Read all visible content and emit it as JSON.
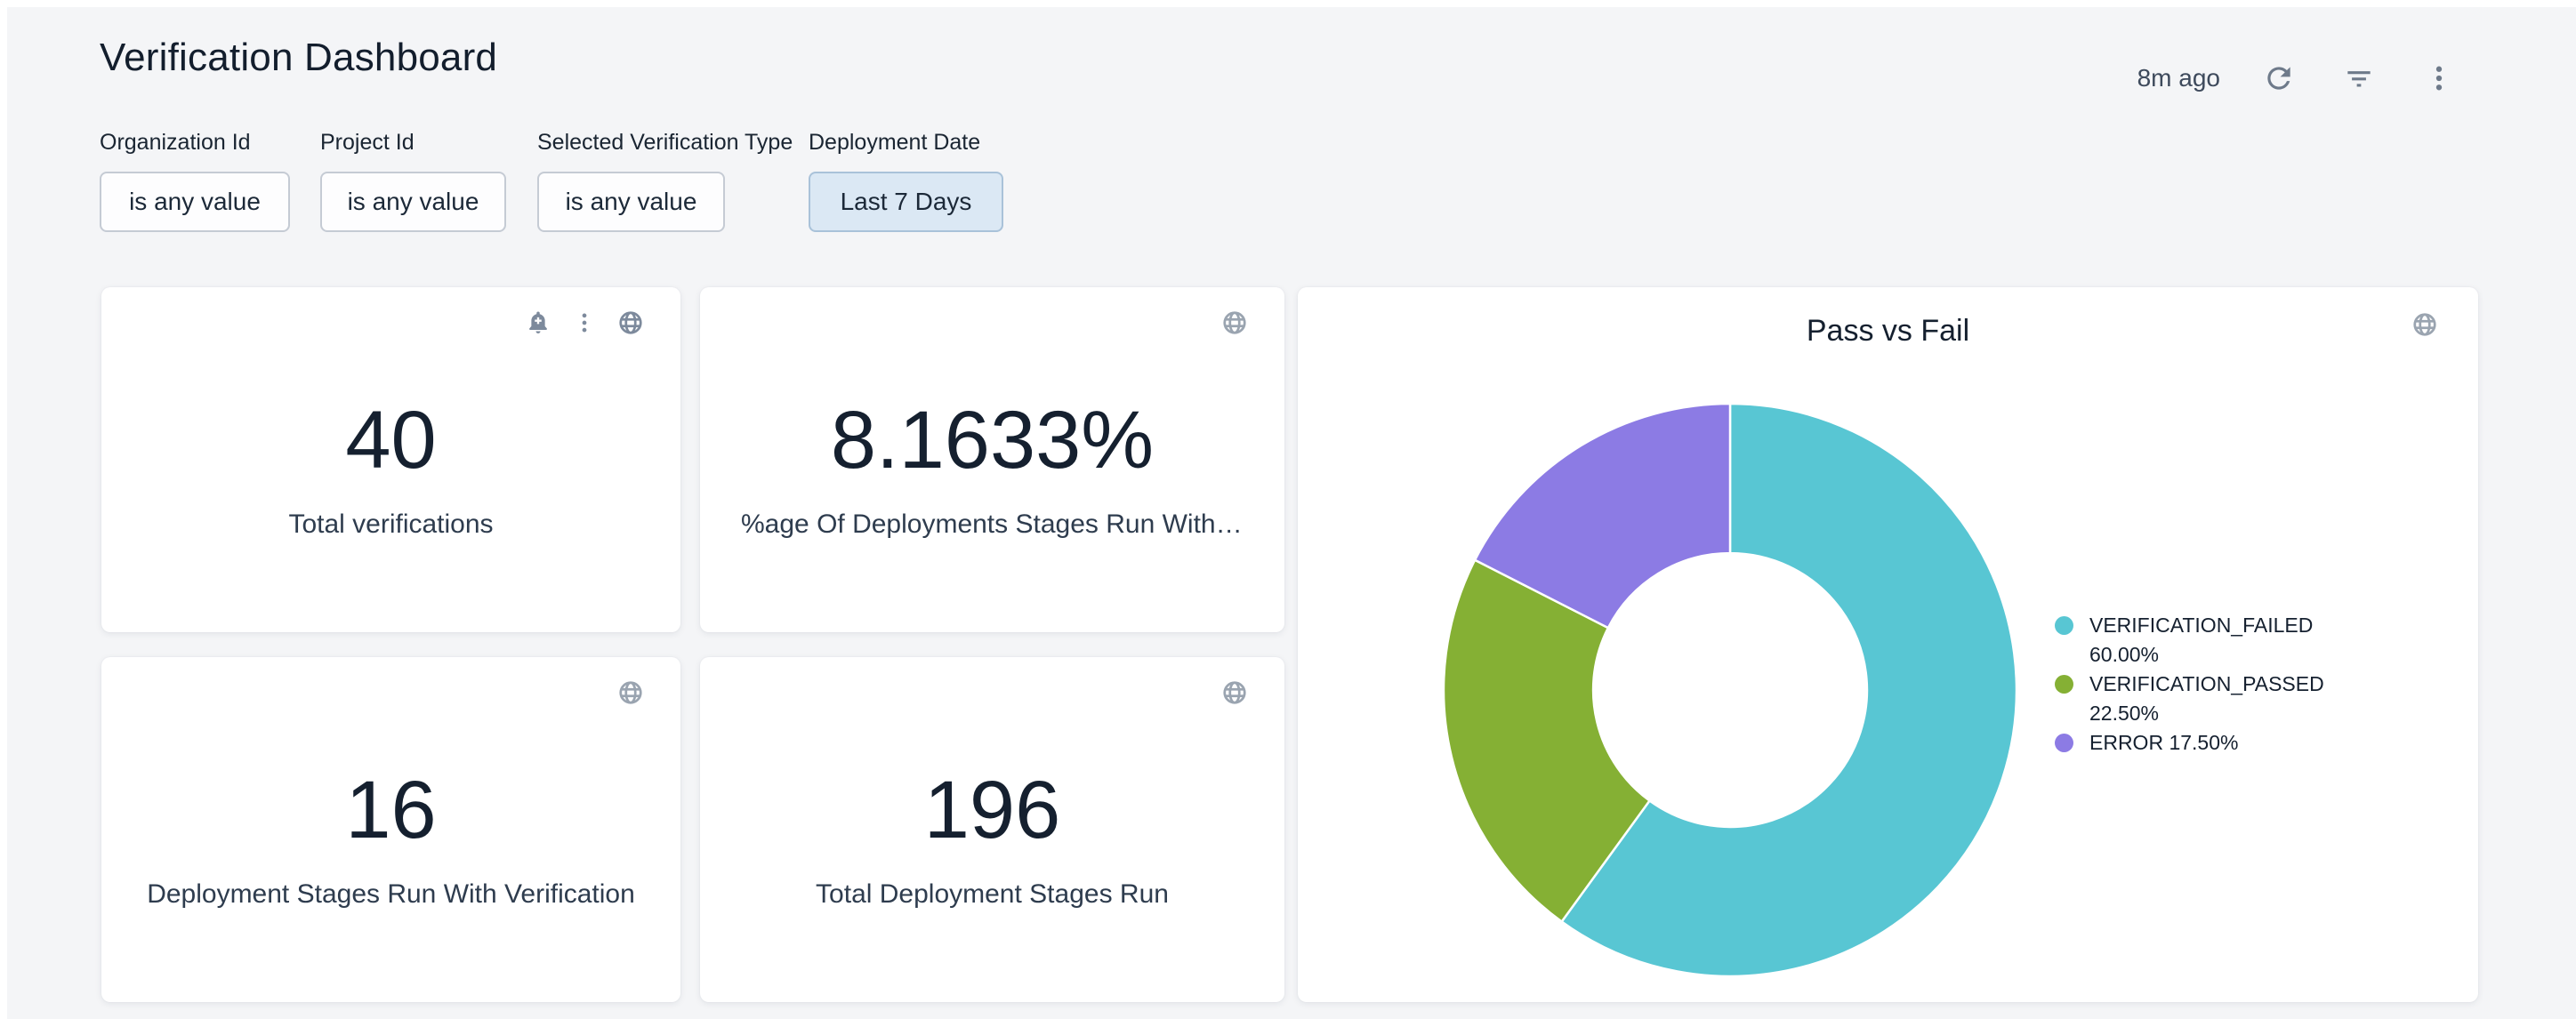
{
  "header": {
    "title": "Verification Dashboard",
    "updated": "8m ago",
    "icons": [
      "refresh-icon",
      "filter-list-icon",
      "kebab-menu-icon"
    ]
  },
  "filters": [
    {
      "label": "Organization Id",
      "value": "is any value",
      "active": false
    },
    {
      "label": "Project Id",
      "value": "is any value",
      "active": false
    },
    {
      "label": "Selected Verification Type",
      "value": "is any value",
      "active": false
    },
    {
      "label": "Deployment Date",
      "value": "Last 7 Days",
      "active": true
    }
  ],
  "tiles": [
    {
      "value": "40",
      "label": "Total verifications",
      "icons": [
        "bell-plus-icon",
        "kebab-menu-icon",
        "globe-icon"
      ]
    },
    {
      "value": "8.1633%",
      "label": "%age Of Deployments Stages Run With V…",
      "icons": [
        "globe-icon"
      ]
    },
    {
      "value": "16",
      "label": "Deployment Stages Run With Verification",
      "icons": [
        "globe-icon"
      ]
    },
    {
      "value": "196",
      "label": "Total Deployment Stages Run",
      "icons": [
        "globe-icon"
      ]
    }
  ],
  "chart_data": {
    "type": "pie",
    "donut": true,
    "title": "Pass vs Fail",
    "legend_position": "right",
    "start_angle_deg": 0,
    "direction": "clockwise",
    "inner_radius_ratio": 0.478,
    "series": [
      {
        "name": "VERIFICATION_FAILED",
        "value": 60.0,
        "display": "60.00%",
        "color": "#58C6D3"
      },
      {
        "name": "VERIFICATION_PASSED",
        "value": 22.5,
        "display": "22.50%",
        "color": "#85B034"
      },
      {
        "name": "ERROR",
        "value": 17.5,
        "display": "17.50%",
        "color": "#8C7BE4"
      }
    ]
  },
  "colors": {
    "page_background": "#f4f5f7",
    "card_background": "#ffffff",
    "title_text": "#131e2d",
    "metric_text": "#15202f",
    "active_chip_background": "#dbe8f4",
    "active_chip_border": "#a9c2d9",
    "chip_border": "#c5cbd4",
    "header_icon": "#6e7a8a",
    "tile_icon_dark": "#7d8a9c",
    "tile_icon_light": "#9aa4b0"
  }
}
